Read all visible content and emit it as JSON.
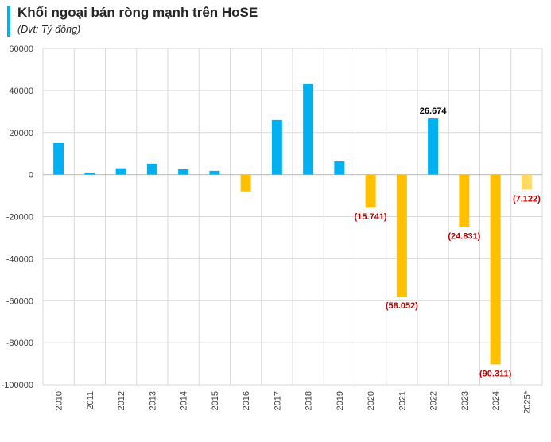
{
  "header": {
    "title": "Khối ngoại bán ròng mạnh trên HoSE",
    "subtitle": "(Đvt: Tỷ đồng)"
  },
  "colors": {
    "positive": "#00b0f0",
    "negative": "#ffc000",
    "estimate": "#ffd966",
    "negative_label": "#c00000",
    "positive_label": "#000000",
    "grid": "#d9d9d9"
  },
  "chart_data": {
    "type": "bar",
    "categories": [
      "2010",
      "2011",
      "2012",
      "2013",
      "2014",
      "2015",
      "2016",
      "2017",
      "2018",
      "2019",
      "2020",
      "2021",
      "2022",
      "2023",
      "2024",
      "2025*"
    ],
    "values": [
      15000,
      1000,
      3000,
      5200,
      2500,
      1800,
      -8000,
      26000,
      43000,
      6300,
      -15741,
      -58052,
      26674,
      -24831,
      -90311,
      -7122
    ],
    "data_labels": {
      "2020": "(15.741)",
      "2021": "(58.052)",
      "2022": "26.674",
      "2023": "(24.831)",
      "2024": "(90.311)",
      "2025*": "(7.122)"
    },
    "ylim": [
      -100000,
      60000
    ],
    "yticks": [
      60000,
      40000,
      20000,
      0,
      -20000,
      -40000,
      -60000,
      -80000,
      -100000
    ],
    "grid": true,
    "title": "Khối ngoại bán ròng mạnh trên HoSE",
    "xlabel": "",
    "ylabel": ""
  }
}
